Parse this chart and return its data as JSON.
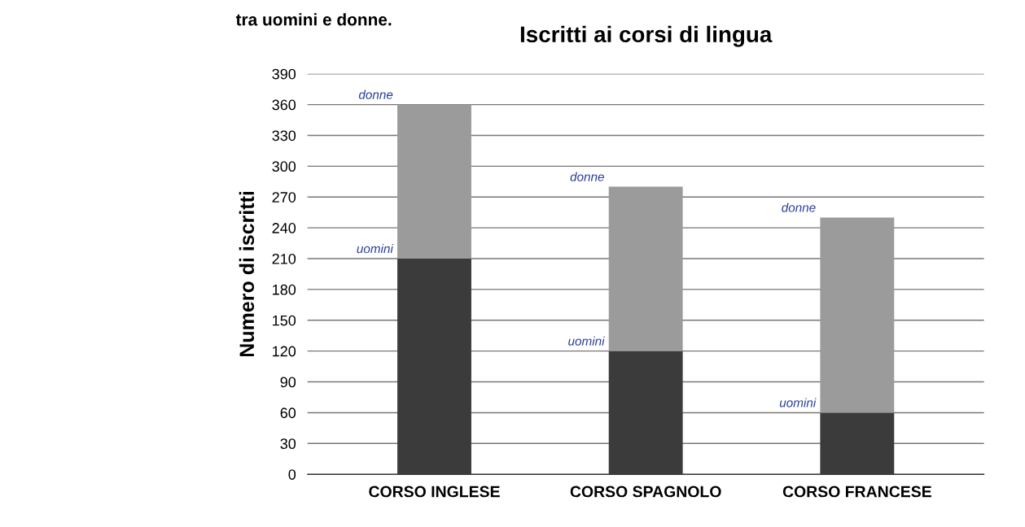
{
  "chart_data": {
    "type": "bar",
    "title": "Iscritti ai corsi di lingua",
    "ylabel": "Numero di iscritti",
    "categories": [
      "CORSO INGLESE",
      "CORSO SPAGNOLO",
      "CORSO FRANCESE"
    ],
    "series": [
      {
        "name": "uomini",
        "color": "#3b3b3b",
        "values": [
          210,
          120,
          60
        ]
      },
      {
        "name": "donne",
        "color": "#9b9b9b",
        "values": [
          150,
          160,
          190
        ]
      }
    ],
    "stacked": true,
    "ylim": [
      0,
      390
    ],
    "yticks": [
      0,
      30,
      60,
      90,
      120,
      150,
      180,
      210,
      240,
      270,
      300,
      330,
      360,
      390
    ],
    "grid": "y",
    "annotations": [
      "tra uomini e donne."
    ]
  }
}
